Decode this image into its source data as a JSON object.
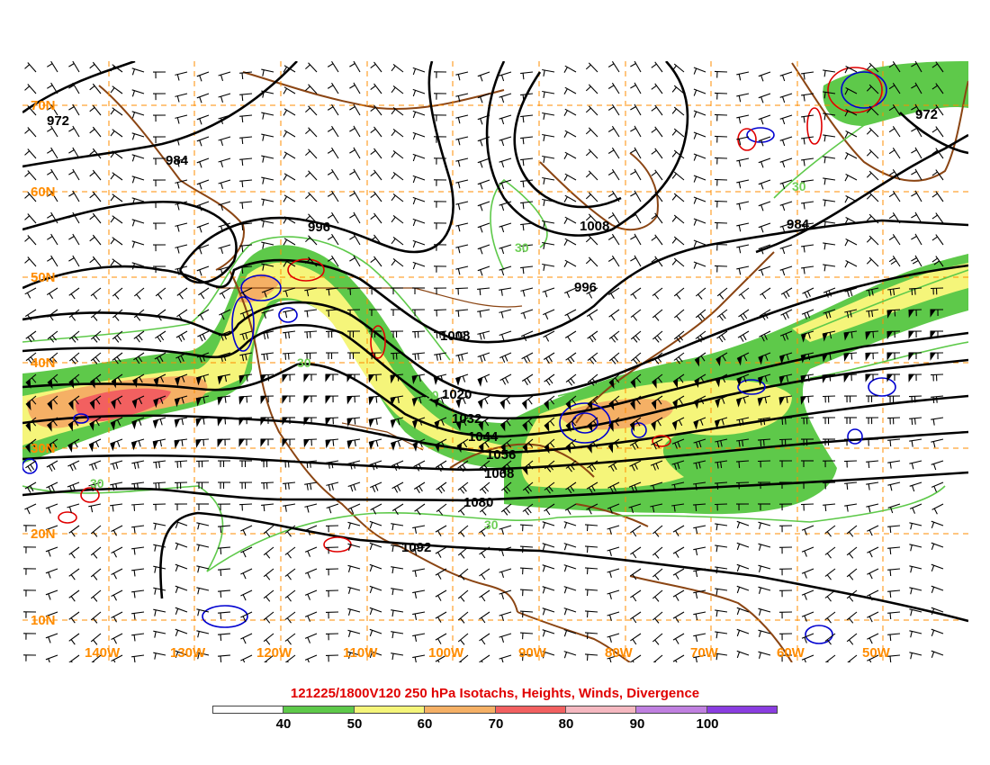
{
  "title": "121225/1800V120 250 hPa Isotachs, Heights, Winds, Divergence",
  "latitude_labels": [
    "70N",
    "60N",
    "50N",
    "40N",
    "30N",
    "20N",
    "10N"
  ],
  "longitude_labels": [
    "140W",
    "130W",
    "120W",
    "110W",
    "100W",
    "90W",
    "80W",
    "70W",
    "60W",
    "50W"
  ],
  "height_contour_labels": [
    "972",
    "984",
    "996",
    "1008",
    "1008",
    "996",
    "1020",
    "1032",
    "1044",
    "1056",
    "1068",
    "1080",
    "1092",
    "984",
    "972"
  ],
  "isotach_contour_labels": [
    "30",
    "30",
    "30",
    "30",
    "30",
    "30"
  ],
  "colorbar": {
    "labels": [
      "40",
      "50",
      "60",
      "70",
      "80",
      "90",
      "100"
    ],
    "colors": [
      "#ffffff",
      "#5ec94a",
      "#f5f57a",
      "#f5b065",
      "#f26060",
      "#f5b8c0",
      "#c080e0",
      "#8a3de0"
    ]
  },
  "colors": {
    "coastline": "#8b4513",
    "grid": "#ff8c00",
    "height_contour": "#000000",
    "isotach_contour": "#5ec94a",
    "divergence_positive": "#e00000",
    "divergence_negative": "#0000d0"
  }
}
